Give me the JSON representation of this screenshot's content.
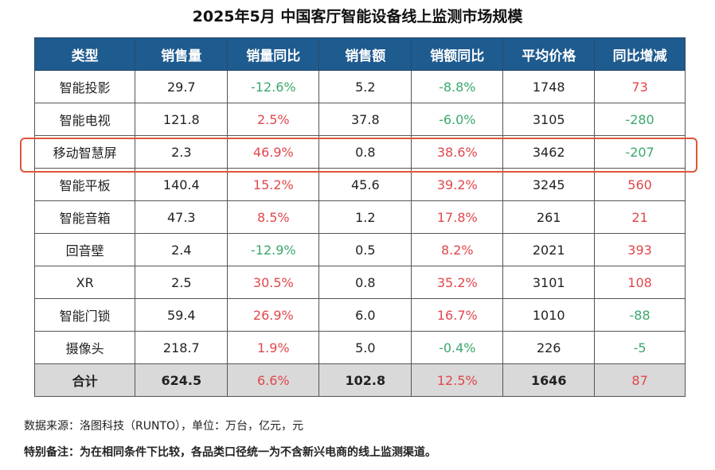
{
  "title": "2025年5月 中国客厅智能设备线上监测市场规模",
  "colors": {
    "header_bg": "#1e5b8f",
    "increase": "#e0474c",
    "decrease": "#3aa86b",
    "highlight": "#e0553a",
    "total_bg": "#d9d9d9"
  },
  "table": {
    "headers": [
      "类型",
      "销售量",
      "销量同比",
      "销售额",
      "销额同比",
      "平均价格",
      "同比增减"
    ],
    "rows": [
      [
        "智能投影",
        "29.7",
        "-12.6%",
        "5.2",
        "-8.8%",
        "1748",
        "73"
      ],
      [
        "智能电视",
        "121.8",
        "2.5%",
        "37.8",
        "-6.0%",
        "3105",
        "-280"
      ],
      [
        "移动智慧屏",
        "2.3",
        "46.9%",
        "0.8",
        "38.6%",
        "3462",
        "-207"
      ],
      [
        "智能平板",
        "140.4",
        "15.2%",
        "45.6",
        "39.2%",
        "3245",
        "560"
      ],
      [
        "智能音箱",
        "47.3",
        "8.5%",
        "1.2",
        "17.8%",
        "261",
        "21"
      ],
      [
        "回音壁",
        "2.4",
        "-12.9%",
        "0.5",
        "8.2%",
        "2021",
        "393"
      ],
      [
        "XR",
        "2.5",
        "30.5%",
        "0.8",
        "35.2%",
        "3101",
        "108"
      ],
      [
        "智能门锁",
        "59.4",
        "26.9%",
        "6.0",
        "16.7%",
        "1010",
        "-88"
      ],
      [
        "摄像头",
        "218.7",
        "1.9%",
        "5.0",
        "-0.4%",
        "226",
        "-5"
      ]
    ],
    "total": [
      "合计",
      "624.5",
      "6.6%",
      "102.8",
      "12.5%",
      "1646",
      "87"
    ],
    "highlighted_row": "移动智慧屏"
  },
  "notes": {
    "source": "数据来源：洛图科技（RUNTO），单位：万台，亿元，元",
    "remark": "特别备注：为在相同条件下比较，各品类口径统一为不含新兴电商的线上监测渠道。"
  }
}
